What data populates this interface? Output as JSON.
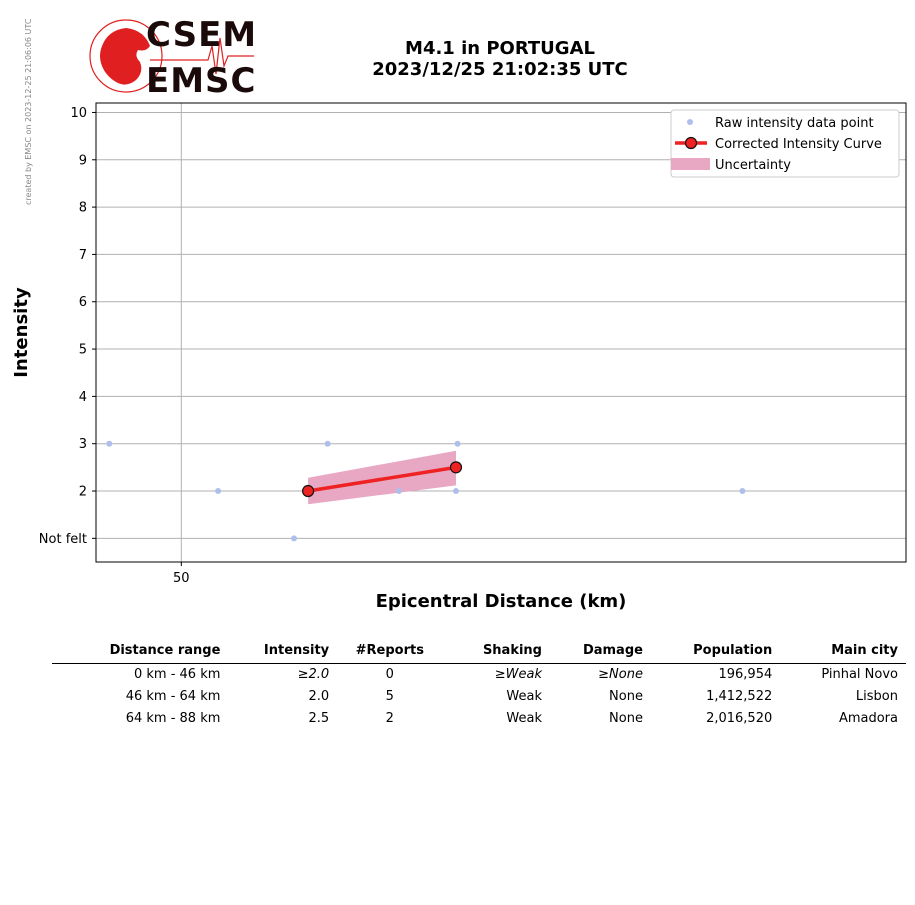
{
  "credit": "created by EMSC on 2023-12-25 21:06:06 UTC",
  "logo": {
    "top_word": "CSEM",
    "bottom_word": "EMSC"
  },
  "title": {
    "line1": "M4.1 in PORTUGAL",
    "line2": "2023/12/25 21:02:35 UTC"
  },
  "chart_data": {
    "type": "scatter",
    "xlabel": "Epicentral Distance (km)",
    "ylabel": "Intensity",
    "x_ticks": [
      50
    ],
    "y_ticks": [
      {
        "value": 1,
        "label": "Not felt"
      },
      {
        "value": 2,
        "label": "2"
      },
      {
        "value": 3,
        "label": "3"
      },
      {
        "value": 4,
        "label": "4"
      },
      {
        "value": 5,
        "label": "5"
      },
      {
        "value": 6,
        "label": "6"
      },
      {
        "value": 7,
        "label": "7"
      },
      {
        "value": 8,
        "label": "8"
      },
      {
        "value": 9,
        "label": "9"
      },
      {
        "value": 10,
        "label": "10"
      }
    ],
    "xlim": [
      39.1,
      142.6
    ],
    "ylim": [
      0.5,
      10.2
    ],
    "grid": true,
    "legend_position": "top-right",
    "legend": [
      "Raw intensity data point",
      "Corrected Intensity Curve",
      "Uncertainty"
    ],
    "colors": {
      "raw": "#aec0ea",
      "curve": "#ee2222",
      "uncertainty": "#e8a8c4",
      "grid": "#b0b0b0"
    },
    "raw_points": [
      {
        "x": 40.8,
        "y": 3
      },
      {
        "x": 54.7,
        "y": 2
      },
      {
        "x": 64.4,
        "y": 1
      },
      {
        "x": 68.7,
        "y": 3
      },
      {
        "x": 77.8,
        "y": 2
      },
      {
        "x": 85.1,
        "y": 2
      },
      {
        "x": 85.3,
        "y": 3
      },
      {
        "x": 121.7,
        "y": 2
      }
    ],
    "curve": [
      {
        "x": 66.2,
        "y": 2.0
      },
      {
        "x": 85.1,
        "y": 2.5
      }
    ],
    "uncertainty": [
      {
        "x": 66.2,
        "low": 1.72,
        "high": 2.28
      },
      {
        "x": 85.1,
        "low": 2.12,
        "high": 2.85
      }
    ]
  },
  "table": {
    "headers": [
      "Distance range",
      "Intensity",
      "#Reports",
      "Shaking",
      "Damage",
      "Population",
      "Main city"
    ],
    "rows": [
      {
        "range": "0 km -   46 km",
        "intensity": "≥2.0",
        "reports": "0",
        "shaking": "≥Weak",
        "damage": "≥None",
        "population": "196,954",
        "city": "Pinhal Novo",
        "italic": true
      },
      {
        "range": "46 km -   64 km",
        "intensity": "2.0",
        "reports": "5",
        "shaking": "Weak",
        "damage": "None",
        "population": "1,412,522",
        "city": "Lisbon",
        "italic": false
      },
      {
        "range": "64 km -   88 km",
        "intensity": "2.5",
        "reports": "2",
        "shaking": "Weak",
        "damage": "None",
        "population": "2,016,520",
        "city": "Amadora",
        "italic": false
      }
    ]
  }
}
